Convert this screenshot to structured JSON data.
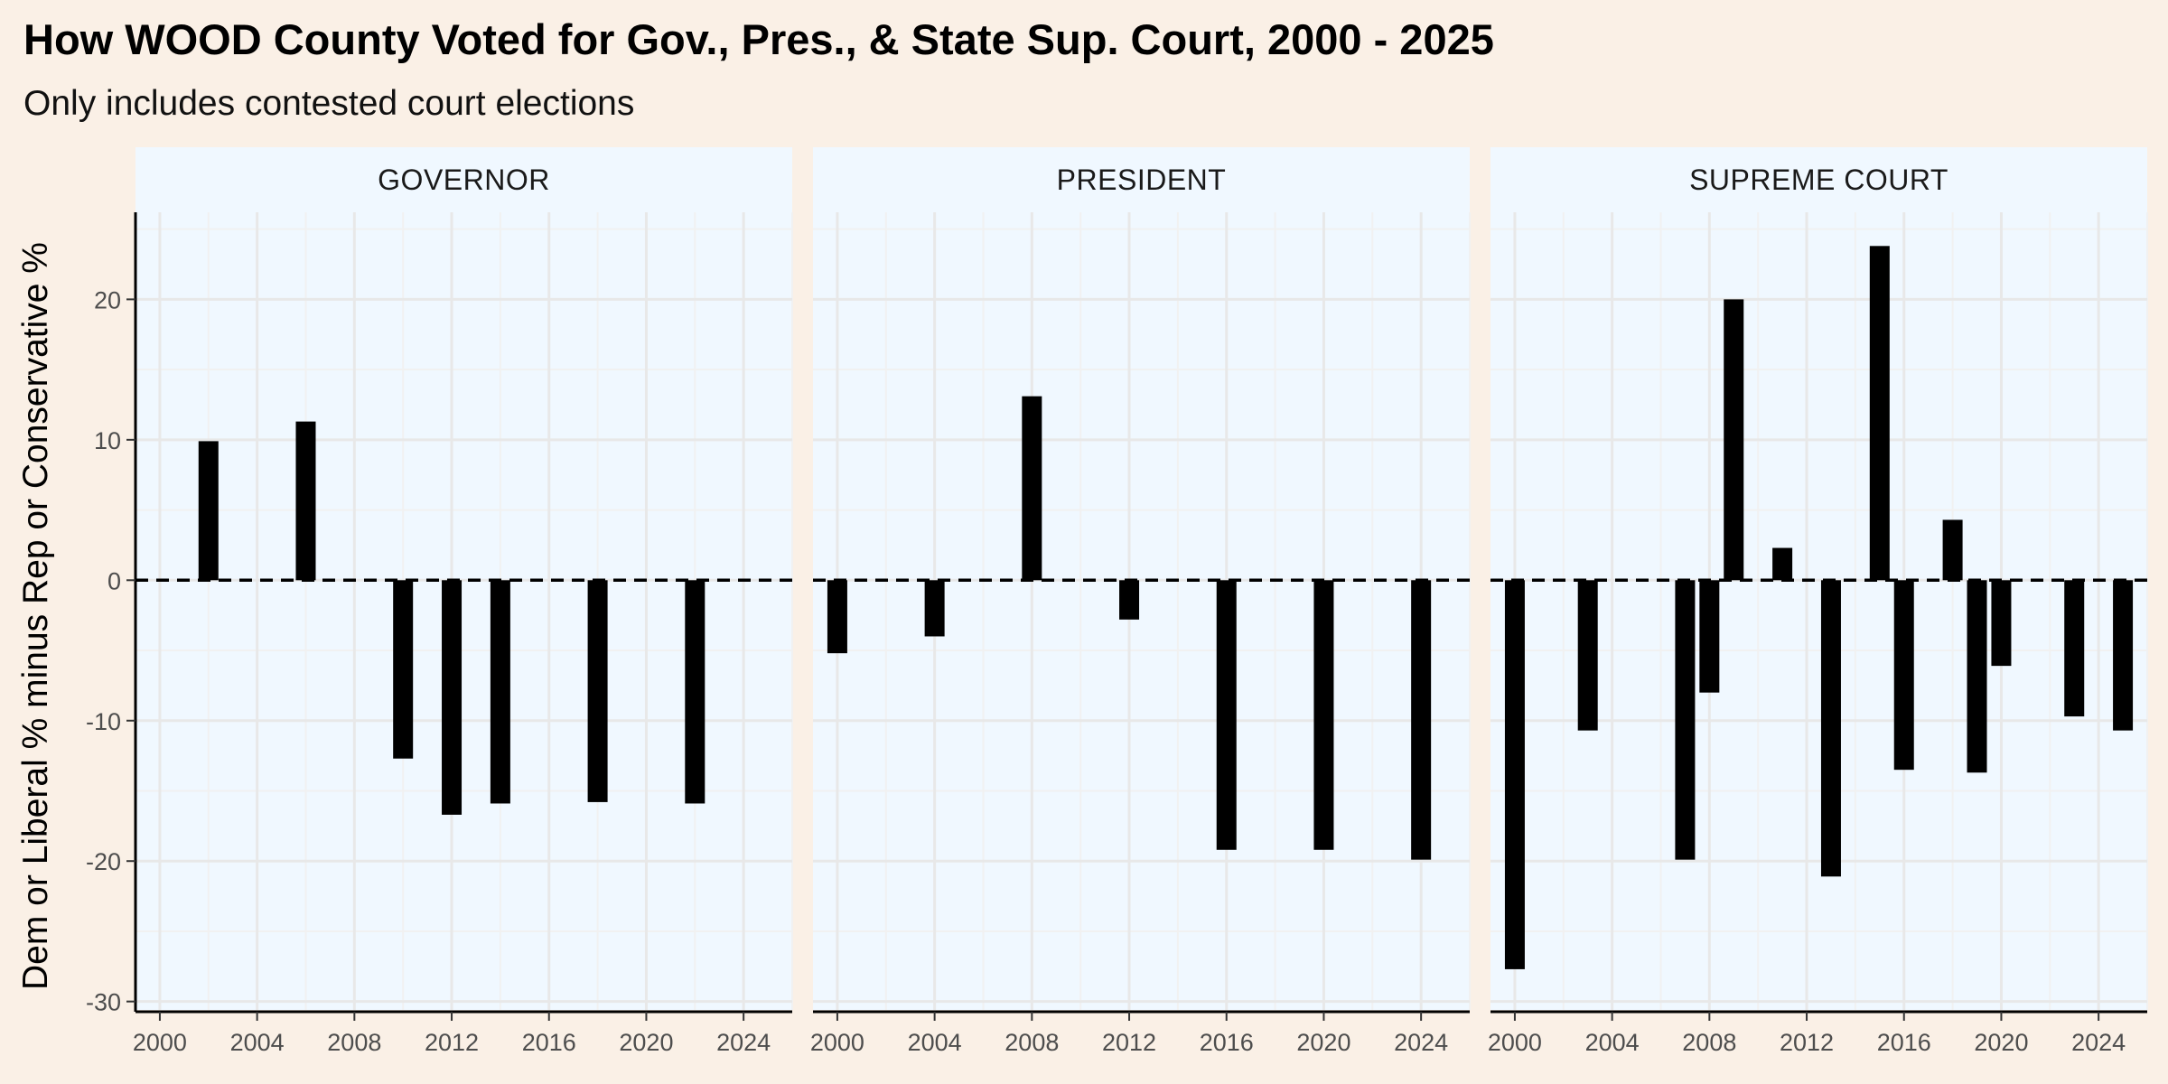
{
  "title": "How WOOD County Voted for Gov., Pres., & State Sup. Court, 2000 - 2025",
  "subtitle": "Only includes contested court elections",
  "colors": {
    "page_background": "#faf0e6",
    "panel_background": "#f0f8ff",
    "strip_background": "#f0f8ff",
    "bar": "#000000",
    "grid_major": "#e8e8e8",
    "grid_minor": "#f1f1f1",
    "reference_line": "#000000"
  },
  "chart_data": {
    "type": "bar",
    "facet_by": "office",
    "ylabel": "Dem or Liberal % minus Rep or Conservative %",
    "xlabel": "",
    "xlim": [
      1999,
      2026
    ],
    "ylim": [
      -30,
      25
    ],
    "x_ticks": [
      2000,
      2004,
      2008,
      2012,
      2016,
      2020,
      2024
    ],
    "y_ticks": [
      -30,
      -20,
      -10,
      0,
      10,
      20
    ],
    "y_tick_labels": [
      "-30",
      "-20",
      "-10",
      "0",
      "10",
      "20"
    ],
    "reference_line": {
      "y": 0,
      "style": "dashed"
    },
    "grid": true,
    "legend": "none",
    "panels": [
      {
        "label": "GOVERNOR",
        "x": [
          2002,
          2006,
          2010,
          2012,
          2014,
          2018,
          2022
        ],
        "values": [
          9.9,
          11.3,
          -12.7,
          -16.7,
          -15.9,
          -15.8,
          -15.9
        ]
      },
      {
        "label": "PRESIDENT",
        "x": [
          2000,
          2004,
          2008,
          2012,
          2016,
          2020,
          2024
        ],
        "values": [
          -5.2,
          -4.0,
          13.1,
          -2.8,
          -19.2,
          -19.2,
          -19.9
        ]
      },
      {
        "label": "SUPREME COURT",
        "x": [
          2000,
          2003,
          2007,
          2008,
          2009,
          2011,
          2013,
          2015,
          2016,
          2018,
          2019,
          2020,
          2023,
          2025
        ],
        "values": [
          -27.7,
          -10.7,
          -19.9,
          -8.0,
          20.0,
          2.3,
          -21.1,
          23.8,
          -13.5,
          4.3,
          -13.7,
          -6.1,
          -9.7,
          -10.7
        ]
      }
    ]
  }
}
